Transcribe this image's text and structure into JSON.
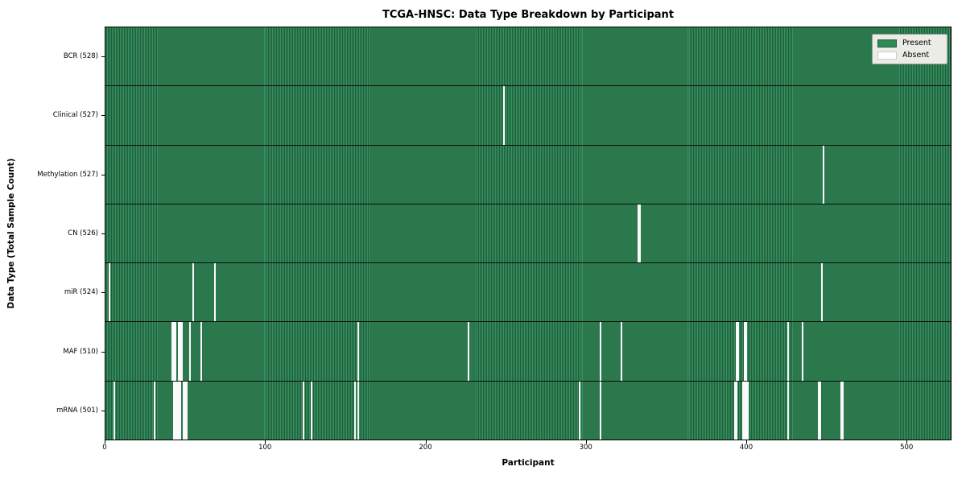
{
  "chart_data": {
    "type": "heatmap",
    "title": "TCGA-HNSC: Data Type Breakdown by Participant",
    "xlabel": "Participant",
    "ylabel": "Data Type (Total Sample Count)",
    "x_range": [
      0,
      528
    ],
    "x_ticks": [
      0,
      100,
      200,
      300,
      400,
      500
    ],
    "legend": [
      "Present",
      "Absent"
    ],
    "legend_position": "upper right",
    "grid": false,
    "rows": [
      {
        "label": "BCR (528)",
        "total": 528,
        "absent_participants": []
      },
      {
        "label": "Clinical (527)",
        "total": 527,
        "absent_participants": [
          248
        ]
      },
      {
        "label": "Methylation (527)",
        "total": 527,
        "absent_participants": [
          447
        ]
      },
      {
        "label": "CN (526)",
        "total": 526,
        "absent_participants": [
          332,
          333
        ]
      },
      {
        "label": "miR (524)",
        "total": 524,
        "absent_participants": [
          2,
          54,
          68,
          446
        ]
      },
      {
        "label": "MAF (510)",
        "total": 510,
        "absent_participants": [
          41,
          42,
          43,
          45,
          46,
          47,
          52,
          59,
          157,
          226,
          308,
          321,
          393,
          394,
          398,
          399,
          425,
          434
        ]
      },
      {
        "label": "mRNA (501)",
        "total": 501,
        "absent_participants": [
          5,
          30,
          42,
          43,
          44,
          45,
          46,
          48,
          49,
          50,
          123,
          128,
          155,
          157,
          295,
          308,
          392,
          393,
          397,
          398,
          399,
          400,
          425,
          444,
          445,
          458,
          459
        ]
      }
    ]
  },
  "colors": {
    "present": "#2e8b57",
    "present_stripe_light": "#37915f",
    "present_stripe_dark": "#1f5e3b",
    "absent": "#fafafa",
    "row_border": "#0d0d0d",
    "legend_bg": "#ebece6",
    "legend_border": "#9a9a9a"
  }
}
